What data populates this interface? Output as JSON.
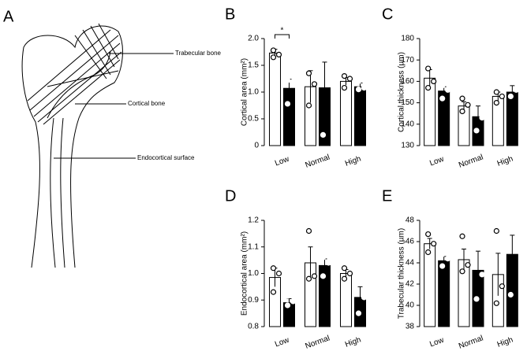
{
  "diagram": {
    "label": "A",
    "labels": [
      "Trabecular bone",
      "Cortical bone",
      "Endocortical surface"
    ]
  },
  "chart_data": [
    {
      "type": "bar",
      "label": "B",
      "ylabel": "Cortical area (mm²)",
      "annotations": [
        "*"
      ],
      "categories": [
        "Low",
        "Normal",
        "High"
      ],
      "ylim": [
        0,
        2.0
      ],
      "yticks": [
        0,
        0.5,
        {
          "value": 1.0,
          "label": "1.0"
        },
        1.5,
        {
          "value": 2.0,
          "label": "2.0"
        }
      ],
      "series": [
        {
          "color": "#ffffff",
          "values": [
            1.73,
            1.1,
            1.2
          ],
          "errors": [
            0.07,
            0.3,
            0.07
          ],
          "points": [
            [
              1.78,
              1.7,
              1.65
            ],
            [
              1.35,
              1.15,
              0.75
            ],
            [
              1.3,
              1.25,
              1.08
            ]
          ]
        },
        {
          "color": "#000000",
          "values": [
            1.07,
            1.08,
            1.1
          ],
          "errors": [
            0.17,
            0.48,
            0.07
          ],
          "points": [
            [
              1.22,
              1.15,
              0.78
            ],
            [
              1.92,
              1.15,
              0.2
            ],
            [
              1.2,
              1.08,
              1.05
            ]
          ]
        }
      ]
    },
    {
      "type": "bar",
      "label": "C",
      "ylabel": "Cortical thickness (µm)",
      "categories": [
        "Low",
        "Normal",
        "High"
      ],
      "ylim": [
        130,
        180
      ],
      "yticks": [
        130,
        140,
        150,
        160,
        170,
        180
      ],
      "series": [
        {
          "color": "#ffffff",
          "values": [
            161.5,
            148.5,
            153
          ],
          "errors": [
            4,
            2,
            2
          ],
          "points": [
            [
              166,
              160,
              157
            ],
            [
              152,
              149,
              146
            ],
            [
              155,
              153,
              150
            ]
          ]
        },
        {
          "color": "#000000",
          "values": [
            155.5,
            143.5,
            155
          ],
          "errors": [
            2,
            5,
            3
          ],
          "points": [
            [
              158,
              156,
              152
            ],
            [
              151,
              143,
              137
            ],
            [
              161,
              156,
              153
            ]
          ]
        }
      ]
    },
    {
      "type": "bar",
      "label": "D",
      "ylabel": "Endocortical area (mm²)",
      "categories": [
        "Low",
        "Normal",
        "High"
      ],
      "ylim": [
        0.8,
        1.2
      ],
      "yticks": [
        0.8,
        0.9,
        {
          "value": 1.0,
          "label": "1.0"
        },
        1.1,
        1.2
      ],
      "series": [
        {
          "color": "#ffffff",
          "values": [
            0.985,
            1.04,
            1.0
          ],
          "errors": [
            0.035,
            0.06,
            0.015
          ],
          "points": [
            [
              1.02,
              1.0,
              0.93
            ],
            [
              1.16,
              0.99,
              0.98
            ],
            [
              1.02,
              1.0,
              0.98
            ]
          ]
        },
        {
          "color": "#000000",
          "values": [
            0.89,
            1.03,
            0.91
          ],
          "errors": [
            0.015,
            0.025,
            0.04
          ],
          "points": [
            [
              0.915,
              0.895,
              0.88
            ],
            [
              1.06,
              1.04,
              0.99
            ],
            [
              0.975,
              0.91,
              0.85
            ]
          ]
        }
      ]
    },
    {
      "type": "bar",
      "label": "E",
      "ylabel": "Trabecular thickness (µm)",
      "categories": [
        "Low",
        "Normal",
        "High"
      ],
      "ylim": [
        38,
        48
      ],
      "yticks": [
        38,
        40,
        42,
        44,
        46,
        48
      ],
      "series": [
        {
          "color": "#ffffff",
          "values": [
            45.8,
            44.3,
            42.9
          ],
          "errors": [
            0.5,
            1.0,
            2.0
          ],
          "points": [
            [
              46.7,
              45.8,
              45.0
            ],
            [
              46.5,
              43.8,
              43.2
            ],
            [
              47.0,
              41.8,
              40.2
            ]
          ]
        },
        {
          "color": "#000000",
          "values": [
            44.2,
            43.3,
            44.8
          ],
          "errors": [
            0.4,
            1.8,
            1.8
          ],
          "points": [
            [
              44.8,
              44.4,
              43.7
            ],
            [
              46.9,
              42.9,
              40.6
            ],
            [
              47.2,
              46.0,
              41.0
            ]
          ]
        }
      ]
    }
  ]
}
